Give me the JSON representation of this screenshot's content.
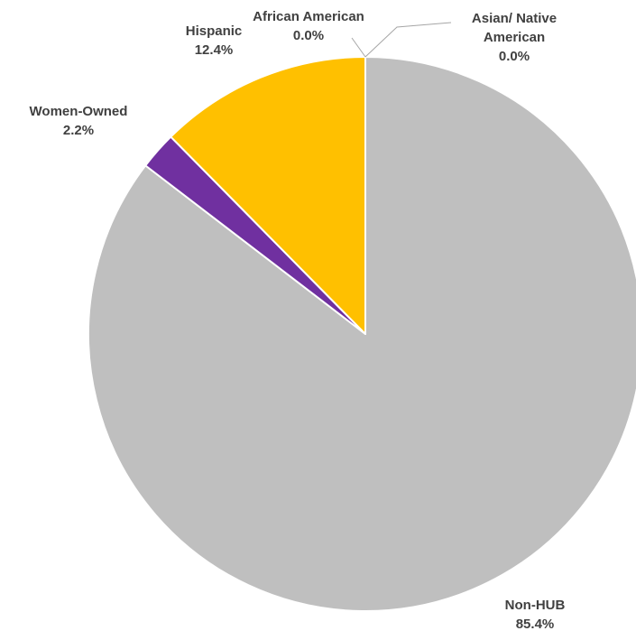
{
  "chart_data": {
    "type": "pie",
    "title": "",
    "start_angle_deg": 0,
    "direction": "clockwise",
    "slices": [
      {
        "label": "Asian/ Native American",
        "label_lines": [
          "Asian/ Native",
          "American"
        ],
        "value": 0.0,
        "value_label": "0.0%",
        "color": "#4472c4"
      },
      {
        "label": "Non-HUB",
        "label_lines": [
          "Non-HUB"
        ],
        "value": 85.4,
        "value_label": "85.4%",
        "color": "#bfbfbf"
      },
      {
        "label": "Women-Owned",
        "label_lines": [
          "Women-Owned"
        ],
        "value": 2.2,
        "value_label": "2.2%",
        "color": "#7030a0"
      },
      {
        "label": "Hispanic",
        "label_lines": [
          "Hispanic"
        ],
        "value": 12.4,
        "value_label": "12.4%",
        "color": "#ffc000"
      },
      {
        "label": "African American",
        "label_lines": [
          "African American"
        ],
        "value": 0.0,
        "value_label": "0.0%",
        "color": "#ed7d31"
      }
    ],
    "slice_border_color": "#ffffff",
    "label_color": "#404040",
    "leader_line_color": "#a6a6a6"
  }
}
